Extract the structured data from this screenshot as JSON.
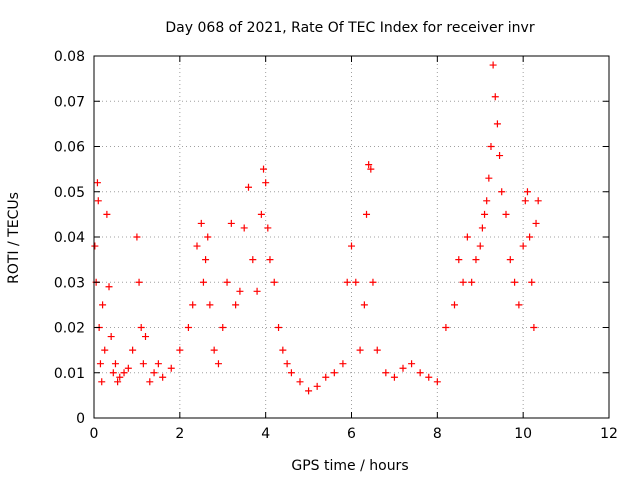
{
  "chart_data": {
    "type": "scatter",
    "title": "Day 068 of 2021, Rate Of TEC Index for receiver invr",
    "xlabel": "GPS time / hours",
    "ylabel": "ROTI / TECUs",
    "xlim": [
      0,
      12
    ],
    "ylim": [
      0,
      0.08
    ],
    "grid": true,
    "marker": "+",
    "color": "#ff0000",
    "xticks": [
      "0",
      "2",
      "4",
      "6",
      "8",
      "10",
      "12"
    ],
    "yticks": [
      "0",
      "0.01",
      "0.02",
      "0.03",
      "0.04",
      "0.05",
      "0.06",
      "0.07",
      "0.08"
    ],
    "series": [
      {
        "name": "ROTI",
        "x": [
          0.02,
          0.05,
          0.08,
          0.1,
          0.12,
          0.15,
          0.18,
          0.2,
          0.25,
          0.3,
          0.35,
          0.4,
          0.45,
          0.5,
          0.55,
          0.6,
          0.7,
          0.8,
          0.9,
          1.0,
          1.05,
          1.1,
          1.15,
          1.2,
          1.3,
          1.4,
          1.5,
          1.6,
          1.8,
          2.0,
          2.2,
          2.3,
          2.4,
          2.5,
          2.55,
          2.6,
          2.65,
          2.7,
          2.8,
          2.9,
          3.0,
          3.1,
          3.2,
          3.3,
          3.4,
          3.5,
          3.6,
          3.7,
          3.8,
          3.9,
          3.95,
          4.0,
          4.05,
          4.1,
          4.2,
          4.3,
          4.4,
          4.5,
          4.6,
          4.8,
          5.0,
          5.2,
          5.4,
          5.6,
          5.8,
          5.9,
          6.0,
          6.1,
          6.2,
          6.3,
          6.35,
          6.4,
          6.45,
          6.5,
          6.6,
          6.8,
          7.0,
          7.2,
          7.4,
          7.6,
          7.8,
          8.0,
          8.2,
          8.4,
          8.5,
          8.6,
          8.7,
          8.8,
          8.9,
          9.0,
          9.05,
          9.1,
          9.15,
          9.2,
          9.25,
          9.3,
          9.35,
          9.4,
          9.45,
          9.5,
          9.6,
          9.7,
          9.8,
          9.9,
          10.0,
          10.05,
          10.1,
          10.15,
          10.2,
          10.25,
          10.3,
          10.35
        ],
        "y": [
          0.038,
          0.03,
          0.052,
          0.048,
          0.02,
          0.012,
          0.008,
          0.025,
          0.015,
          0.045,
          0.029,
          0.018,
          0.01,
          0.012,
          0.008,
          0.009,
          0.01,
          0.011,
          0.015,
          0.04,
          0.03,
          0.02,
          0.012,
          0.018,
          0.008,
          0.01,
          0.012,
          0.009,
          0.011,
          0.015,
          0.02,
          0.025,
          0.038,
          0.043,
          0.03,
          0.035,
          0.04,
          0.025,
          0.015,
          0.012,
          0.02,
          0.03,
          0.043,
          0.025,
          0.028,
          0.042,
          0.051,
          0.035,
          0.028,
          0.045,
          0.055,
          0.052,
          0.042,
          0.035,
          0.03,
          0.02,
          0.015,
          0.012,
          0.01,
          0.008,
          0.006,
          0.007,
          0.009,
          0.01,
          0.012,
          0.03,
          0.038,
          0.03,
          0.015,
          0.025,
          0.045,
          0.056,
          0.055,
          0.03,
          0.015,
          0.01,
          0.009,
          0.011,
          0.012,
          0.01,
          0.009,
          0.008,
          0.02,
          0.025,
          0.035,
          0.03,
          0.04,
          0.03,
          0.035,
          0.038,
          0.042,
          0.045,
          0.048,
          0.053,
          0.06,
          0.078,
          0.071,
          0.065,
          0.058,
          0.05,
          0.045,
          0.035,
          0.03,
          0.025,
          0.038,
          0.048,
          0.05,
          0.04,
          0.03,
          0.02,
          0.043,
          0.048
        ]
      }
    ]
  }
}
